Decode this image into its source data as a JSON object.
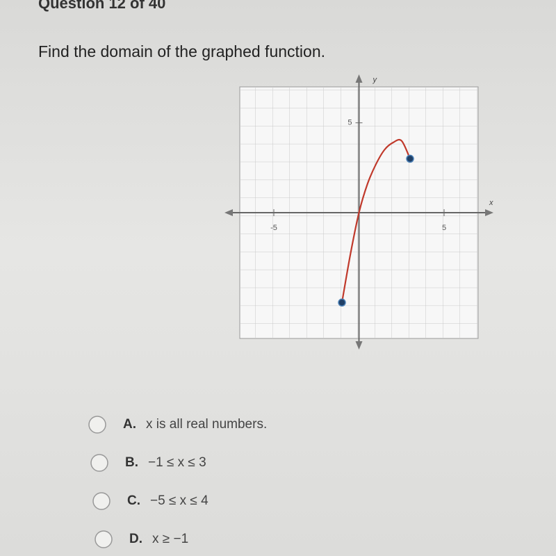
{
  "header": {
    "title": "Question 12 of 40"
  },
  "question": "Find the domain of the graphed function.",
  "graph": {
    "x_label": "x",
    "y_label": "y",
    "xlim": [
      -7,
      7
    ],
    "ylim": [
      -7,
      7
    ],
    "xticks": [
      -5,
      5
    ],
    "yticks": [
      5
    ],
    "curve": {
      "x": [
        -1,
        -0.5,
        0,
        0.5,
        1,
        1.5,
        2,
        2.5,
        3
      ],
      "y": [
        -5,
        -2.3,
        0,
        1.6,
        2.7,
        3.5,
        3.9,
        4,
        3
      ]
    }
  },
  "choices": [
    {
      "letter": "A.",
      "text": "x is all real numbers."
    },
    {
      "letter": "B.",
      "text": "−1 ≤ x ≤ 3"
    },
    {
      "letter": "C.",
      "text": "−5 ≤ x ≤ 4"
    },
    {
      "letter": "D.",
      "text": "x ≥ −1"
    }
  ]
}
